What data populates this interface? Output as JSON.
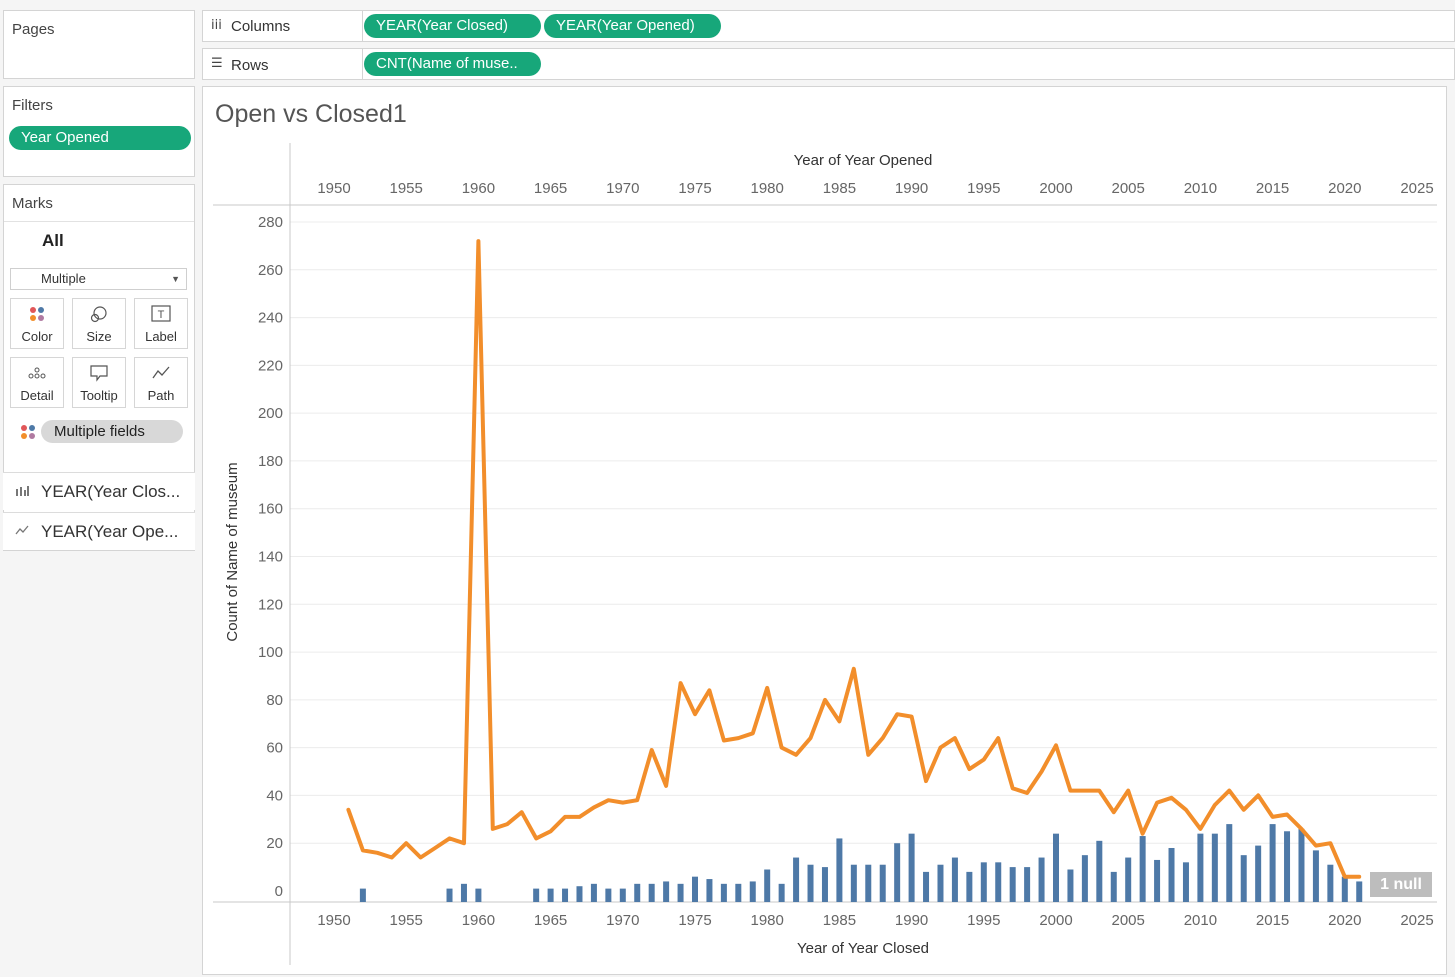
{
  "pages": {
    "title": "Pages"
  },
  "filters": {
    "title": "Filters",
    "pills": [
      "Year Opened"
    ]
  },
  "marks": {
    "title": "Marks",
    "all_label": "All",
    "mark_type": "Multiple",
    "buttons": [
      {
        "label": "Color",
        "icon": "color-dots-icon"
      },
      {
        "label": "Size",
        "icon": "size-icon"
      },
      {
        "label": "Label",
        "icon": "label-t-icon"
      },
      {
        "label": "Detail",
        "icon": "detail-dots-icon"
      },
      {
        "label": "Tooltip",
        "icon": "tooltip-icon"
      },
      {
        "label": "Path",
        "icon": "path-icon"
      }
    ],
    "fields_pill": "Multiple fields",
    "cards": [
      {
        "label": "YEAR(Year Clos...",
        "icon": "bar-chart-icon"
      },
      {
        "label": "YEAR(Year Ope...",
        "icon": "line-chart-icon"
      }
    ]
  },
  "shelves": {
    "columns_label": "Columns",
    "columns_pills": [
      "YEAR(Year Closed)",
      "YEAR(Year Opened)"
    ],
    "rows_label": "Rows",
    "rows_pills": [
      "CNT(Name of muse.."
    ]
  },
  "chart_title": "Open vs Closed1",
  "null_badge": "1 null",
  "chart_data": {
    "type": "bar",
    "title": "Open vs Closed1",
    "xlabel": "Year of Year Closed",
    "x2label": "Year of Year Opened",
    "ylabel": "Count of Name of museum",
    "ylim": [
      0,
      285
    ],
    "xlim": [
      1946,
      2026
    ],
    "x_ticks": [
      1950,
      1955,
      1960,
      1965,
      1970,
      1975,
      1980,
      1985,
      1990,
      1995,
      2000,
      2005,
      2010,
      2015,
      2020,
      2025
    ],
    "y_ticks": [
      0,
      20,
      40,
      60,
      80,
      100,
      120,
      140,
      160,
      180,
      200,
      220,
      240,
      260,
      280
    ],
    "grid": true,
    "colors": {
      "bars": "#4e79a7",
      "line": "#f28e2b"
    },
    "series": [
      {
        "name": "YEAR(Year Closed)",
        "type": "bar",
        "x": [
          1952,
          1958,
          1959,
          1960,
          1964,
          1965,
          1966,
          1967,
          1968,
          1969,
          1970,
          1971,
          1972,
          1973,
          1974,
          1975,
          1976,
          1977,
          1978,
          1979,
          1980,
          1981,
          1982,
          1983,
          1984,
          1985,
          1986,
          1987,
          1988,
          1989,
          1990,
          1991,
          1992,
          1993,
          1994,
          1995,
          1996,
          1997,
          1998,
          1999,
          2000,
          2001,
          2002,
          2003,
          2004,
          2005,
          2006,
          2007,
          2008,
          2009,
          2010,
          2011,
          2012,
          2013,
          2014,
          2015,
          2016,
          2017,
          2018,
          2019,
          2020,
          2021
        ],
        "values": [
          1,
          1,
          3,
          1,
          1,
          1,
          1,
          2,
          3,
          1,
          1,
          3,
          3,
          4,
          3,
          6,
          5,
          3,
          3,
          4,
          9,
          3,
          14,
          11,
          10,
          22,
          11,
          11,
          11,
          20,
          24,
          8,
          11,
          14,
          8,
          12,
          12,
          10,
          10,
          14,
          24,
          9,
          15,
          21,
          8,
          14,
          23,
          13,
          18,
          12,
          24,
          24,
          28,
          15,
          19,
          28,
          25,
          26,
          17,
          11,
          6,
          4
        ]
      },
      {
        "name": "YEAR(Year Opened)",
        "type": "line",
        "x": [
          1951,
          1952,
          1953,
          1954,
          1955,
          1956,
          1957,
          1958,
          1959,
          1960,
          1961,
          1962,
          1963,
          1964,
          1965,
          1966,
          1967,
          1968,
          1969,
          1970,
          1971,
          1972,
          1973,
          1974,
          1975,
          1976,
          1977,
          1978,
          1979,
          1980,
          1981,
          1982,
          1983,
          1984,
          1985,
          1986,
          1987,
          1988,
          1989,
          1990,
          1991,
          1992,
          1993,
          1994,
          1995,
          1996,
          1997,
          1998,
          1999,
          2000,
          2001,
          2002,
          2003,
          2004,
          2005,
          2006,
          2007,
          2008,
          2009,
          2010,
          2011,
          2012,
          2013,
          2014,
          2015,
          2016,
          2017,
          2018,
          2019,
          2020,
          2021
        ],
        "values": [
          34,
          17,
          16,
          14,
          20,
          14,
          18,
          22,
          20,
          272,
          26,
          28,
          33,
          22,
          25,
          31,
          31,
          35,
          38,
          37,
          38,
          59,
          44,
          87,
          74,
          84,
          63,
          64,
          66,
          85,
          60,
          57,
          64,
          80,
          71,
          93,
          57,
          64,
          74,
          73,
          46,
          60,
          64,
          51,
          55,
          64,
          43,
          41,
          50,
          61,
          42,
          42,
          42,
          33,
          42,
          24,
          37,
          39,
          34,
          26,
          36,
          42,
          34,
          40,
          31,
          32,
          26,
          19,
          20,
          6,
          6
        ]
      }
    ]
  }
}
